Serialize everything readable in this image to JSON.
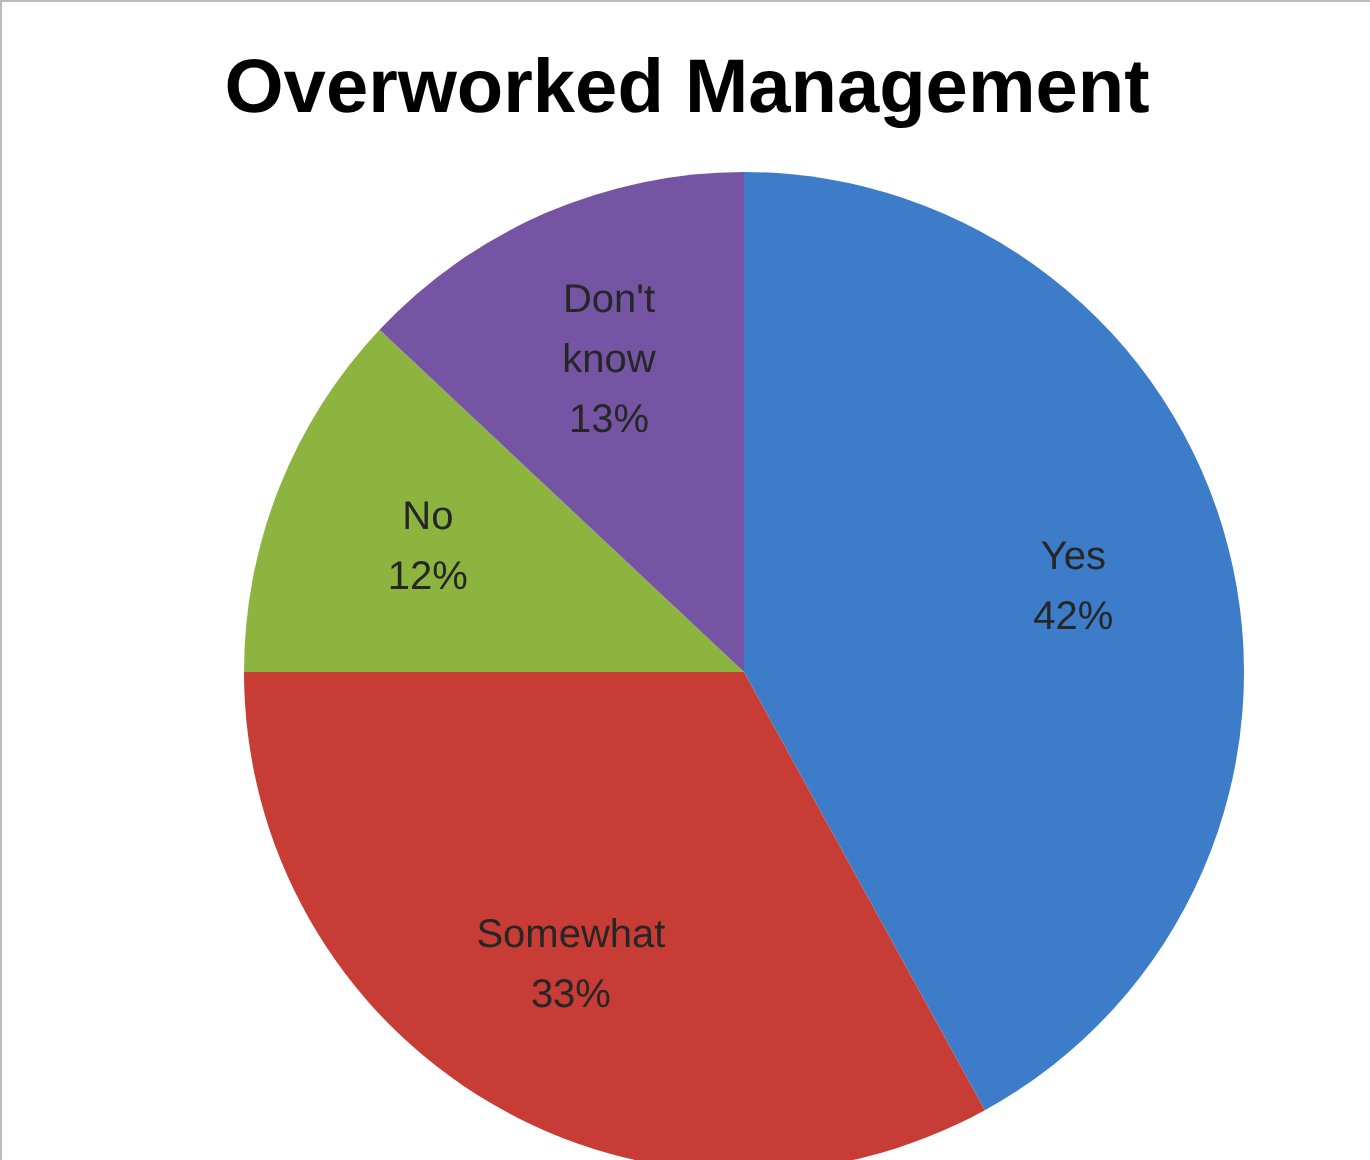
{
  "chart_data": {
    "type": "pie",
    "title": "Overworked Management",
    "categories": [
      "Yes",
      "Somewhat",
      "No",
      "Don't know"
    ],
    "values": [
      42,
      33,
      12,
      13
    ],
    "value_labels": [
      "42%",
      "33%",
      "12%",
      "13%"
    ],
    "colors": [
      "#3d7cc9",
      "#c83c36",
      "#8cb43f",
      "#7555a3"
    ],
    "legend": false
  }
}
